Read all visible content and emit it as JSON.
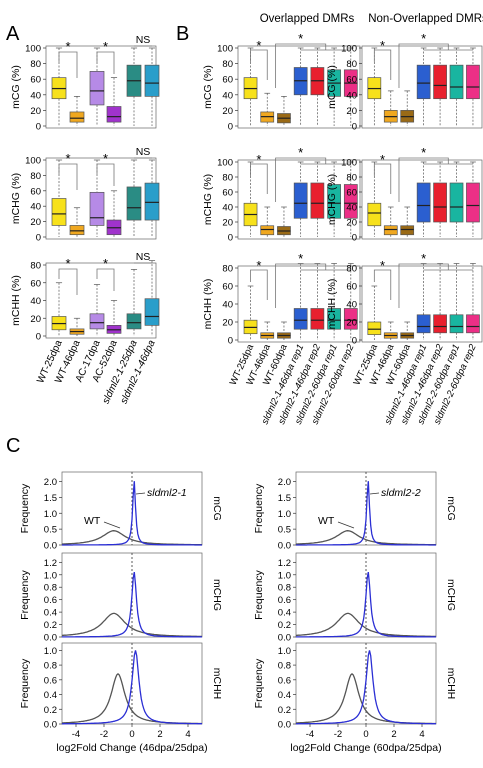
{
  "panels": {
    "A": "A",
    "B": "B",
    "C": "C"
  },
  "sig": {
    "star": "*",
    "ns": "NS"
  },
  "colors": {
    "wt25": "#f7e11b",
    "wt46": "#f0a820",
    "wt60": "#9a6a16",
    "ac17": "#b68ae6",
    "ac52": "#a033cc",
    "mut1": "#2a8c84",
    "mut2": "#2a9eca",
    "b_mut1r1": "#2b5fd0",
    "b_mut1r2": "#e8202e",
    "b_mut2r1": "#19b5a0",
    "b_mut2r2": "#ec2f86",
    "wt_line": "#555555",
    "mut_line": "#2b2fd4"
  },
  "chart_data": [
    {
      "panel": "A",
      "type": "box",
      "categories": [
        "WT-25dpa",
        "WT-46dpa",
        "AC-17dpa",
        "AC-52dpa",
        "sldml2-1-25dpa",
        "sldml2-1-46dpa"
      ],
      "rows": [
        {
          "ylabel": "mCG (%)",
          "yticks": [
            0,
            20,
            40,
            60,
            80,
            100
          ],
          "ylim": [
            0,
            100
          ],
          "boxes": [
            [
              0,
              35,
              48,
              62,
              100
            ],
            [
              0,
              5,
              10,
              18,
              38
            ],
            [
              0,
              27,
              45,
              70,
              100
            ],
            [
              0,
              5,
              12,
              25,
              62
            ],
            [
              0,
              38,
              58,
              78,
              100
            ],
            [
              0,
              38,
              55,
              78,
              100
            ]
          ]
        },
        {
          "ylabel": "mCHG (%)",
          "yticks": [
            0,
            20,
            40,
            60,
            80,
            100
          ],
          "ylim": [
            0,
            100
          ],
          "boxes": [
            [
              0,
              15,
              30,
              50,
              100
            ],
            [
              0,
              3,
              8,
              15,
              38
            ],
            [
              0,
              15,
              25,
              58,
              100
            ],
            [
              0,
              3,
              12,
              22,
              60
            ],
            [
              0,
              22,
              38,
              65,
              100
            ],
            [
              0,
              22,
              45,
              70,
              100
            ]
          ]
        },
        {
          "ylabel": "mCHH (%)",
          "yticks": [
            0,
            20,
            40,
            60,
            80
          ],
          "ylim": [
            0,
            80
          ],
          "boxes": [
            [
              0,
              7,
              14,
              22,
              60
            ],
            [
              0,
              2,
              5,
              8,
              20
            ],
            [
              0,
              8,
              15,
              25,
              58
            ],
            [
              0,
              3,
              7,
              12,
              40
            ],
            [
              0,
              8,
              15,
              25,
              75
            ],
            [
              0,
              12,
              22,
              42,
              85
            ]
          ]
        }
      ],
      "annotations": [
        [
          "*",
          "NS"
        ],
        [
          "*",
          "NS"
        ],
        [
          "*",
          "NS"
        ]
      ]
    },
    {
      "panel": "B",
      "type": "box",
      "groups": [
        "Overlapped DMRs",
        "Non-Overlapped DMRs"
      ],
      "categories": [
        "WT-25dpa",
        "WT-46dpa",
        "WT-60dpa",
        "sldml2-1-46dpa rep1",
        "sldml2-1-46dpa rep2",
        "sldml2-2-60dpa rep1",
        "sldml2-2-60dpa rep2"
      ],
      "rows": [
        {
          "ylabel": "mCG (%)",
          "yticks": [
            0,
            20,
            40,
            60,
            80,
            100
          ],
          "ylim": [
            0,
            100
          ],
          "overlapped": [
            [
              0,
              35,
              48,
              62,
              100
            ],
            [
              0,
              5,
              12,
              18,
              42
            ],
            [
              0,
              4,
              10,
              16,
              38
            ],
            [
              0,
              40,
              58,
              75,
              100
            ],
            [
              0,
              40,
              58,
              75,
              100
            ],
            [
              0,
              38,
              55,
              72,
              100
            ],
            [
              0,
              38,
              55,
              72,
              100
            ]
          ],
          "non_overlapped": [
            [
              0,
              35,
              48,
              62,
              100
            ],
            [
              0,
              5,
              12,
              20,
              45
            ],
            [
              0,
              5,
              12,
              20,
              45
            ],
            [
              0,
              35,
              55,
              78,
              100
            ],
            [
              0,
              35,
              52,
              78,
              100
            ],
            [
              0,
              35,
              50,
              78,
              100
            ],
            [
              0,
              35,
              50,
              78,
              100
            ]
          ]
        },
        {
          "ylabel": "mCHG (%)",
          "yticks": [
            0,
            20,
            40,
            60,
            80,
            100
          ],
          "ylim": [
            0,
            100
          ],
          "overlapped": [
            [
              0,
              15,
              30,
              45,
              100
            ],
            [
              0,
              3,
              10,
              15,
              40
            ],
            [
              0,
              3,
              8,
              14,
              40
            ],
            [
              0,
              25,
              45,
              72,
              100
            ],
            [
              0,
              25,
              45,
              72,
              100
            ],
            [
              0,
              25,
              45,
              70,
              100
            ],
            [
              0,
              25,
              45,
              70,
              100
            ]
          ],
          "non_overlapped": [
            [
              0,
              15,
              32,
              45,
              100
            ],
            [
              0,
              3,
              10,
              15,
              40
            ],
            [
              0,
              3,
              10,
              15,
              40
            ],
            [
              0,
              20,
              42,
              72,
              100
            ],
            [
              0,
              20,
              40,
              72,
              100
            ],
            [
              0,
              20,
              40,
              72,
              100
            ],
            [
              0,
              20,
              42,
              72,
              100
            ]
          ]
        },
        {
          "ylabel": "mCHH (%)",
          "yticks": [
            0,
            20,
            40,
            60,
            80
          ],
          "ylim": [
            0,
            80
          ],
          "overlapped": [
            [
              0,
              7,
              14,
              22,
              60
            ],
            [
              0,
              2,
              5,
              8,
              20
            ],
            [
              0,
              2,
              5,
              8,
              20
            ],
            [
              0,
              12,
              22,
              35,
              85
            ],
            [
              0,
              12,
              22,
              35,
              85
            ],
            [
              0,
              12,
              22,
              35,
              85
            ],
            [
              0,
              12,
              22,
              35,
              85
            ]
          ],
          "non_overlapped": [
            [
              0,
              6,
              12,
              20,
              60
            ],
            [
              0,
              2,
              5,
              8,
              20
            ],
            [
              0,
              2,
              5,
              8,
              20
            ],
            [
              0,
              8,
              15,
              28,
              85
            ],
            [
              0,
              8,
              15,
              28,
              85
            ],
            [
              0,
              8,
              15,
              28,
              85
            ],
            [
              0,
              8,
              15,
              28,
              85
            ]
          ]
        }
      ],
      "annotations": [
        "*",
        "*",
        "*",
        "*",
        "*",
        "*"
      ]
    },
    {
      "panel": "C",
      "type": "line",
      "xlabels": [
        "log2Fold Change (46dpa/25dpa)",
        "log2Fold Change (60dpa/25dpa)"
      ],
      "xticks": [
        -4,
        -2,
        0,
        2,
        4
      ],
      "xlim": [
        -5,
        5
      ],
      "series_names": [
        [
          "WT",
          "sldml2-1"
        ],
        [
          "WT",
          "sldml2-2"
        ]
      ],
      "rows": [
        {
          "ylabel": "Frequency",
          "context": "mCG",
          "ylim": [
            0,
            2.3
          ],
          "yticks": [
            0.0,
            0.5,
            1.0,
            1.5,
            2.0
          ],
          "wt": {
            "peak_x": -1.3,
            "peak_y": 0.45,
            "width": 1.0
          },
          "mut": {
            "peak_x": 0.15,
            "peak_y": 2.05,
            "width": 0.12
          }
        },
        {
          "ylabel": "Frequency",
          "context": "mCHG",
          "ylim": [
            0,
            1.35
          ],
          "yticks": [
            0.0,
            0.2,
            0.4,
            0.6,
            0.8,
            1.0,
            1.2
          ],
          "wt": {
            "peak_x": -1.3,
            "peak_y": 0.38,
            "width": 1.0
          },
          "mut": {
            "peak_x": 0.15,
            "peak_y": 1.05,
            "width": 0.2
          }
        },
        {
          "ylabel": "Frequency",
          "context": "mCHH",
          "ylim": [
            0,
            1.1
          ],
          "yticks": [
            0.0,
            0.2,
            0.4,
            0.6,
            0.8,
            1.0
          ],
          "wt": {
            "peak_x": -1.0,
            "peak_y": 0.68,
            "width": 0.6
          },
          "mut": {
            "peak_x": 0.25,
            "peak_y": 1.0,
            "width": 0.3
          }
        }
      ]
    }
  ]
}
